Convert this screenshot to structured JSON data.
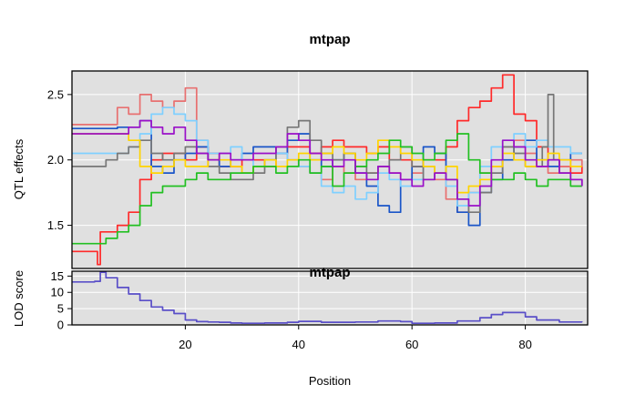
{
  "chart_data": {
    "type": "line",
    "title": "mtpap",
    "xlabel": "Position",
    "x_ticks": [
      20,
      40,
      60,
      80
    ],
    "xlim": [
      0,
      91
    ],
    "background": "#e0e0e0",
    "grid": true,
    "panels": [
      {
        "ylabel": "QTL effects",
        "ylim": [
          1.17,
          2.68
        ],
        "y_ticks": [
          1.5,
          2.0,
          2.5
        ],
        "y_tick_labels": [
          "1.5",
          "2.0",
          "2.5"
        ],
        "series": [
          {
            "color": "#ff2a2a",
            "x": [
              0,
              2,
              4,
              4.5,
              5,
              8,
              10,
              12,
              14,
              16,
              18,
              20,
              22,
              24,
              26,
              28,
              30,
              32,
              34,
              36,
              38,
              40,
              42,
              44,
              46,
              48,
              50,
              52,
              54,
              56,
              58,
              60,
              62,
              64,
              66,
              68,
              70,
              72,
              74,
              76,
              78,
              80,
              82,
              84,
              86,
              88,
              90
            ],
            "values": [
              1.3,
              1.3,
              1.3,
              1.2,
              1.45,
              1.5,
              1.6,
              1.85,
              2.0,
              2.05,
              2.05,
              2.0,
              2.1,
              2.05,
              1.95,
              1.95,
              2.0,
              2.0,
              1.95,
              2.05,
              2.1,
              2.1,
              2.05,
              2.1,
              2.15,
              2.1,
              2.1,
              2.05,
              2.1,
              2.0,
              2.0,
              1.95,
              2.0,
              2.0,
              2.1,
              2.3,
              2.4,
              2.45,
              2.55,
              2.65,
              2.35,
              2.3,
              2.1,
              2.0,
              1.95,
              1.9,
              1.95
            ]
          },
          {
            "color": "#e87070",
            "x": [
              0,
              4,
              6,
              8,
              10,
              12,
              14,
              16,
              18,
              20,
              22,
              24,
              26,
              28,
              30,
              32,
              34,
              36,
              38,
              40,
              42,
              44,
              46,
              48,
              50,
              52,
              54,
              56,
              58,
              60,
              62,
              64,
              66,
              68,
              70,
              72,
              74,
              76,
              78,
              80,
              82,
              84,
              86,
              88,
              90
            ],
            "values": [
              2.27,
              2.27,
              2.27,
              2.4,
              2.35,
              2.5,
              2.45,
              2.4,
              2.45,
              2.55,
              2.15,
              2.0,
              1.95,
              1.95,
              1.9,
              1.95,
              2.0,
              2.05,
              2.0,
              1.95,
              1.9,
              1.85,
              1.95,
              1.9,
              1.85,
              1.9,
              1.95,
              1.9,
              1.85,
              1.9,
              1.95,
              1.85,
              1.7,
              1.6,
              1.75,
              1.9,
              1.95,
              2.1,
              2.15,
              2.05,
              1.95,
              1.9,
              1.95,
              2.0,
              1.95
            ]
          },
          {
            "color": "#1a55c8",
            "x": [
              0,
              4,
              6,
              8,
              10,
              12,
              14,
              16,
              18,
              20,
              22,
              24,
              26,
              28,
              30,
              32,
              34,
              36,
              38,
              40,
              42,
              44,
              46,
              48,
              50,
              52,
              54,
              56,
              58,
              60,
              62,
              64,
              66,
              68,
              70,
              72,
              74,
              76,
              78,
              80,
              82,
              84,
              86,
              88,
              90
            ],
            "values": [
              2.24,
              2.24,
              2.24,
              2.25,
              2.25,
              2.3,
              1.95,
              1.9,
              2.0,
              2.05,
              2.1,
              2.0,
              1.95,
              2.0,
              2.05,
              2.1,
              2.1,
              2.05,
              2.15,
              2.2,
              2.0,
              1.95,
              2.0,
              2.05,
              1.9,
              1.8,
              1.65,
              1.6,
              1.85,
              1.95,
              2.1,
              2.05,
              1.85,
              1.6,
              1.5,
              1.75,
              1.85,
              2.0,
              2.1,
              2.15,
              2.0,
              1.95,
              2.0,
              2.05,
              2.05
            ]
          },
          {
            "color": "#7fd0ff",
            "x": [
              0,
              4,
              6,
              8,
              10,
              12,
              14,
              16,
              18,
              20,
              22,
              24,
              26,
              28,
              30,
              32,
              34,
              36,
              38,
              40,
              42,
              44,
              46,
              48,
              50,
              52,
              54,
              56,
              58,
              60,
              62,
              64,
              66,
              68,
              70,
              72,
              74,
              76,
              78,
              80,
              82,
              84,
              86,
              88,
              90
            ],
            "values": [
              2.05,
              2.05,
              2.05,
              2.05,
              2.1,
              2.2,
              2.35,
              2.4,
              2.35,
              2.3,
              2.15,
              2.05,
              2.05,
              2.1,
              2.0,
              1.95,
              2.0,
              2.05,
              2.0,
              1.95,
              1.9,
              1.8,
              1.75,
              1.8,
              1.7,
              1.75,
              1.9,
              1.85,
              1.8,
              1.85,
              1.95,
              1.9,
              1.8,
              1.65,
              1.75,
              1.95,
              2.1,
              2.15,
              2.2,
              2.1,
              2.15,
              2.1,
              2.1,
              2.05,
              2.05
            ]
          },
          {
            "color": "#777777",
            "x": [
              0,
              4,
              6,
              8,
              10,
              12,
              14,
              16,
              18,
              20,
              22,
              24,
              26,
              28,
              30,
              32,
              34,
              36,
              38,
              40,
              42,
              44,
              46,
              48,
              50,
              52,
              54,
              56,
              58,
              60,
              62,
              64,
              66,
              68,
              70,
              72,
              74,
              76,
              78,
              80,
              82,
              83,
              84,
              85,
              86,
              88,
              90
            ],
            "values": [
              1.95,
              1.95,
              2.0,
              2.05,
              2.1,
              2.15,
              2.05,
              2.0,
              2.05,
              2.1,
              2.05,
              1.95,
              1.9,
              1.85,
              1.85,
              1.9,
              2.0,
              2.1,
              2.25,
              2.3,
              2.15,
              2.05,
              2.0,
              2.05,
              1.95,
              1.9,
              1.95,
              2.0,
              2.1,
              1.95,
              1.85,
              1.9,
              1.85,
              1.7,
              1.6,
              1.75,
              1.9,
              2.1,
              2.05,
              1.95,
              1.95,
              2.1,
              2.5,
              2.0,
              1.9,
              1.85,
              1.8
            ]
          },
          {
            "color": "#ffd400",
            "x": [
              0,
              4,
              6,
              8,
              10,
              12,
              14,
              16,
              18,
              20,
              22,
              24,
              26,
              28,
              30,
              32,
              34,
              36,
              38,
              40,
              42,
              44,
              46,
              48,
              50,
              52,
              54,
              56,
              58,
              60,
              62,
              64,
              66,
              68,
              70,
              72,
              74,
              76,
              78,
              80,
              82,
              84,
              86,
              88,
              90
            ],
            "values": [
              2.2,
              2.2,
              2.2,
              2.2,
              2.15,
              1.95,
              1.9,
              1.95,
              2.0,
              1.95,
              1.95,
              2.0,
              2.0,
              1.95,
              1.9,
              1.95,
              2.0,
              1.95,
              2.0,
              2.05,
              2.0,
              2.05,
              2.1,
              2.05,
              2.0,
              2.05,
              2.15,
              2.1,
              2.05,
              2.0,
              1.95,
              1.9,
              1.95,
              1.75,
              1.8,
              1.85,
              1.95,
              2.05,
              2.0,
              1.95,
              2.0,
              2.05,
              2.0,
              1.95,
              1.95
            ]
          },
          {
            "color": "#22c022",
            "x": [
              0,
              4,
              6,
              8,
              10,
              12,
              14,
              16,
              18,
              20,
              22,
              24,
              26,
              28,
              30,
              32,
              34,
              36,
              38,
              40,
              42,
              44,
              46,
              48,
              50,
              52,
              54,
              56,
              58,
              60,
              62,
              64,
              66,
              68,
              70,
              72,
              74,
              76,
              78,
              80,
              82,
              84,
              86,
              88,
              90
            ],
            "values": [
              1.36,
              1.36,
              1.4,
              1.45,
              1.5,
              1.65,
              1.75,
              1.8,
              1.8,
              1.85,
              1.9,
              1.85,
              1.85,
              1.9,
              1.9,
              1.95,
              1.95,
              1.9,
              1.95,
              2.0,
              1.9,
              1.95,
              1.8,
              1.9,
              1.95,
              2.0,
              2.05,
              2.15,
              2.1,
              2.05,
              2.0,
              2.05,
              2.15,
              2.2,
              2.0,
              1.9,
              1.85,
              1.85,
              1.9,
              1.85,
              1.8,
              1.85,
              1.85,
              1.8,
              1.8
            ]
          },
          {
            "color": "#9a10c8",
            "x": [
              0,
              4,
              6,
              8,
              10,
              12,
              14,
              16,
              18,
              20,
              22,
              24,
              26,
              28,
              30,
              32,
              34,
              36,
              38,
              40,
              42,
              44,
              46,
              48,
              50,
              52,
              54,
              56,
              58,
              60,
              62,
              64,
              66,
              68,
              70,
              72,
              74,
              76,
              78,
              80,
              82,
              84,
              86,
              88,
              90
            ],
            "values": [
              2.2,
              2.2,
              2.2,
              2.2,
              2.25,
              2.3,
              2.25,
              2.2,
              2.25,
              2.15,
              2.05,
              2.0,
              2.05,
              2.0,
              2.0,
              2.05,
              2.05,
              2.1,
              2.2,
              2.15,
              2.05,
              2.0,
              1.95,
              2.0,
              1.9,
              1.85,
              1.95,
              1.9,
              1.85,
              1.8,
              1.85,
              1.9,
              1.85,
              1.7,
              1.65,
              1.8,
              2.0,
              2.15,
              2.1,
              2.0,
              1.95,
              2.0,
              1.9,
              1.85,
              1.8
            ]
          }
        ]
      },
      {
        "ylabel": "LOD score",
        "overlay_title": "mtpap",
        "ylim": [
          0,
          16.5
        ],
        "y_ticks": [
          0,
          5,
          10,
          15
        ],
        "y_tick_labels": [
          "0",
          "5",
          "10",
          "15"
        ],
        "series": [
          {
            "color": "#5a4fc8",
            "x": [
              0,
              3,
              4,
              5,
              6,
              8,
              10,
              12,
              14,
              16,
              18,
              20,
              22,
              24,
              26,
              28,
              30,
              34,
              38,
              40,
              44,
              50,
              54,
              58,
              60,
              64,
              68,
              72,
              74,
              76,
              80,
              82,
              86,
              90
            ],
            "values": [
              13.2,
              13.2,
              13.4,
              16.2,
              14.5,
              11.5,
              9.5,
              7.5,
              5.5,
              4.5,
              3.5,
              1.5,
              1.0,
              0.9,
              0.8,
              0.6,
              0.5,
              0.6,
              0.8,
              1.1,
              0.8,
              0.9,
              1.2,
              1.0,
              0.5,
              0.6,
              1.2,
              2.2,
              3.2,
              3.8,
              2.5,
              1.5,
              0.9,
              0.8
            ]
          }
        ]
      }
    ]
  }
}
